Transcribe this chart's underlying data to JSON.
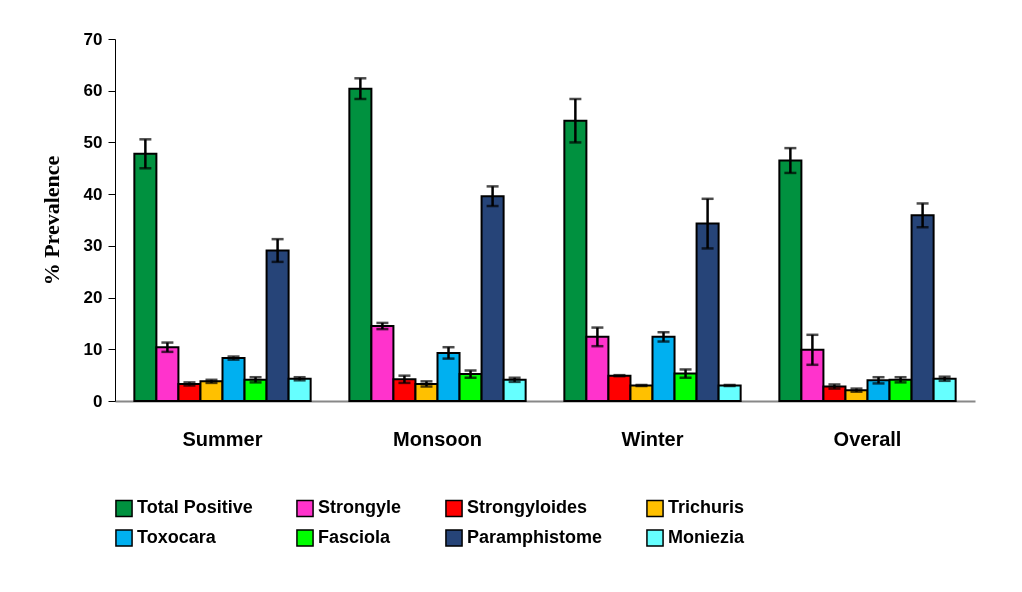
{
  "chart_data": {
    "type": "bar",
    "ylabel": "% Prevalence",
    "categories": [
      "Summer",
      "Monsoon",
      "Winter",
      "Overall"
    ],
    "series": [
      {
        "name": "Total Positive",
        "color": "#00913f",
        "values": [
          47.8,
          60.4,
          54.2,
          46.5
        ],
        "errors": [
          2.8,
          2.0,
          4.2,
          2.4
        ]
      },
      {
        "name": "Strongyle",
        "color": "#ff33cc",
        "values": [
          10.4,
          14.5,
          12.4,
          9.9
        ],
        "errors": [
          0.9,
          0.6,
          1.8,
          2.9
        ]
      },
      {
        "name": "Strongyloides",
        "color": "#ff0000",
        "values": [
          3.3,
          4.2,
          4.9,
          2.8
        ],
        "errors": [
          0.3,
          0.7,
          0.1,
          0.4
        ]
      },
      {
        "name": "Trichuris",
        "color": "#ffc000",
        "values": [
          3.8,
          3.3,
          3.0,
          2.1
        ],
        "errors": [
          0.3,
          0.5,
          0.1,
          0.3
        ]
      },
      {
        "name": "Toxocara",
        "color": "#00b0f0",
        "values": [
          8.3,
          9.3,
          12.4,
          4.0
        ],
        "errors": [
          0.3,
          1.1,
          0.9,
          0.6
        ]
      },
      {
        "name": "Fasciola",
        "color": "#00ff00",
        "values": [
          4.1,
          5.2,
          5.3,
          4.1
        ],
        "errors": [
          0.5,
          0.7,
          0.8,
          0.5
        ]
      },
      {
        "name": "Paramphistome",
        "color": "#264478",
        "values": [
          29.1,
          39.6,
          34.3,
          35.9
        ],
        "errors": [
          2.2,
          1.9,
          4.8,
          2.3
        ]
      },
      {
        "name": "Moniezia",
        "color": "#66ffff",
        "values": [
          4.3,
          4.1,
          3.0,
          4.3
        ],
        "errors": [
          0.3,
          0.4,
          0.1,
          0.4
        ]
      }
    ],
    "ylim": [
      0,
      70
    ],
    "yticks": [
      0,
      10,
      20,
      30,
      40,
      50,
      60,
      70
    ],
    "grid": false,
    "legend": "bottom"
  }
}
